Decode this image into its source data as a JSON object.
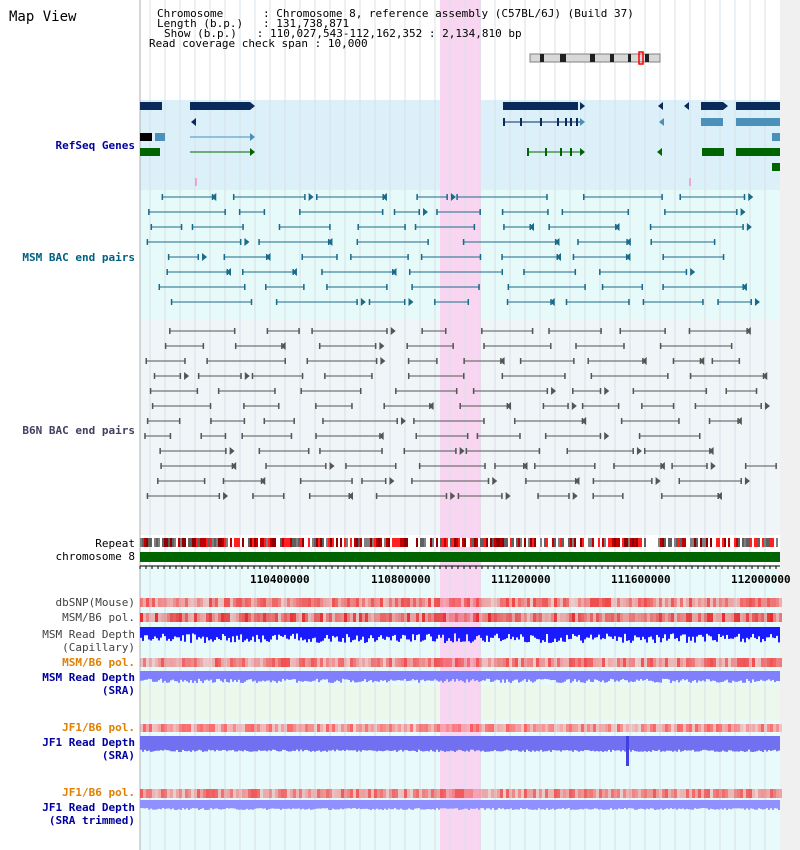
{
  "title": "Map View",
  "info": {
    "chromosome_key": "Chromosome",
    "chromosome_val": "Chromosome 8, reference assembly (C57BL/6J) (Build 37)",
    "length_key": "Length (b.p.)",
    "length_val": "131,738,871",
    "show_key": "Show (b.p.)",
    "show_val": "110,027,543-112,162,352 : 2,134,810 bp",
    "span_key": "Read coverage check span",
    "span_val": "10,000"
  },
  "tracks": {
    "refseq": "RefSeq Genes",
    "msm_bac": "MSM BAC end pairs",
    "b6n_bac": "B6N BAC end pairs",
    "repeat": "Repeat",
    "chromosome": "chromosome 8",
    "dbsnp": "dbSNP(Mouse)",
    "msm_b6_pol_1": "MSM/B6 pol.",
    "msm_depth_cap_1": "MSM Read Depth",
    "msm_depth_cap_2": "(Capillary)",
    "msm_b6_pol_2": "MSM/B6 pol.",
    "msm_depth_sra_1": "MSM Read Depth",
    "msm_depth_sra_2": "(SRA)",
    "jf1_b6_pol_1": "JF1/B6 pol.",
    "jf1_depth_1": "JF1 Read Depth",
    "jf1_depth_2": "(SRA)",
    "jf1_b6_pol_2": "JF1/B6 pol.",
    "jf1_trim_1": "JF1 Read Depth",
    "jf1_trim_2": "(SRA trimmed)"
  },
  "axis_ticks": [
    "110400000",
    "110800000",
    "111200000",
    "111600000",
    "112000000"
  ],
  "colors": {
    "refseq_bg": "#dcf0fa",
    "msm_bg": "#e6fafa",
    "b6n_bg": "#f0f5f8",
    "highlight": "#f8d6f2",
    "chromosome": "#006400",
    "refseq_label": "#0000a0",
    "msm_label": "#006080",
    "b6n_label": "#404060",
    "orange_label": "#e08000",
    "blue_label": "#0000a0"
  }
}
